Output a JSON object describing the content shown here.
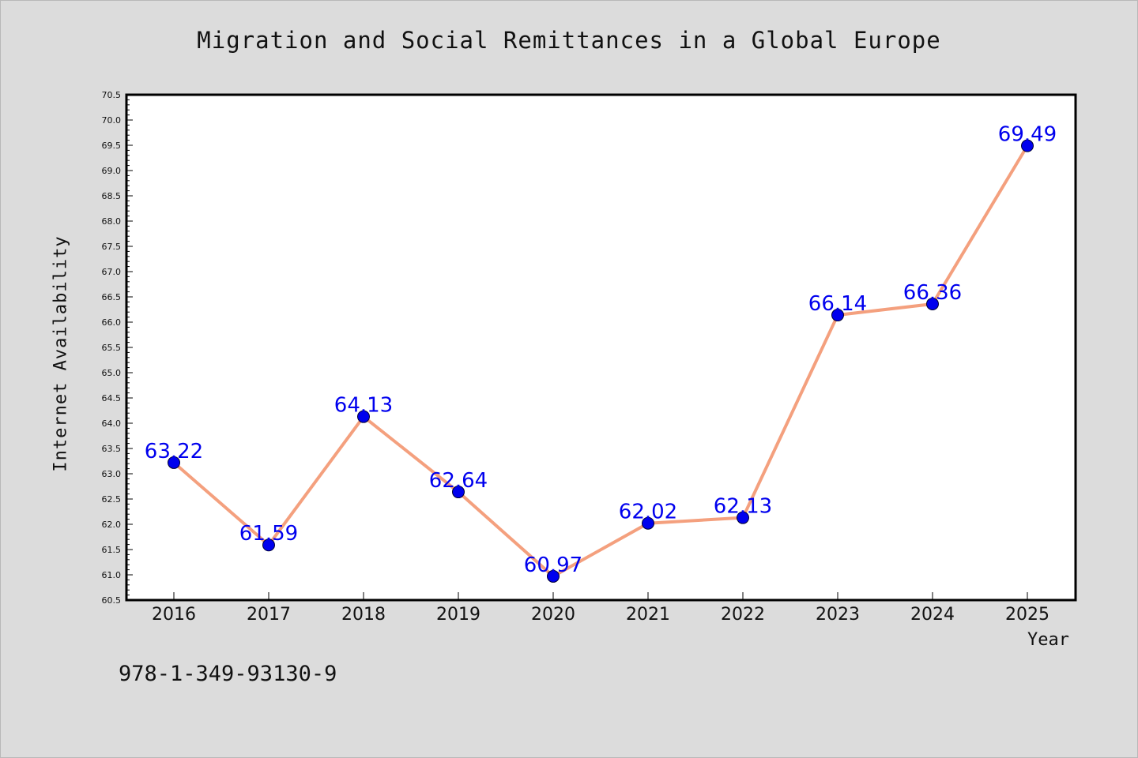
{
  "chart_data": {
    "type": "line",
    "title": "Migration and Social Remittances in a Global Europe",
    "xlabel": "Year",
    "ylabel": "Internet Availability",
    "x": [
      "2016",
      "2017",
      "2018",
      "2019",
      "2020",
      "2021",
      "2022",
      "2023",
      "2024",
      "2025"
    ],
    "series": [
      {
        "values": [
          63.22,
          61.59,
          64.13,
          62.64,
          60.97,
          62.02,
          62.13,
          66.14,
          66.36,
          69.49
        ]
      }
    ],
    "data_labels": [
      "63.22",
      "61.59",
      "64.13",
      "62.64",
      "60.97",
      "62.02",
      "62.13",
      "66.14",
      "66.36",
      "69.49"
    ],
    "ylim": [
      60.5,
      70.5
    ],
    "yticks": [
      "60.5",
      "61.0",
      "61.5",
      "62.0",
      "62.5",
      "63.0",
      "63.5",
      "64.0",
      "64.5",
      "65.0",
      "65.5",
      "66.0",
      "66.5",
      "67.0",
      "67.5",
      "68.0",
      "68.5",
      "69.0",
      "69.5",
      "70.0",
      "70.5"
    ],
    "grid": false,
    "line_color": "#f4a07e",
    "marker_color": "#0000ee",
    "label_color": "#0000ee"
  },
  "note": "978-1-349-93130-9"
}
